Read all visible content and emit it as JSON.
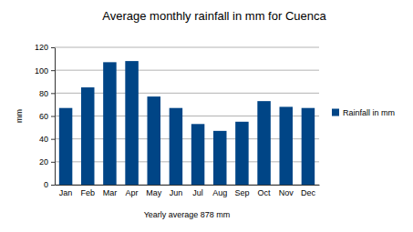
{
  "chart_data": {
    "type": "bar",
    "title": "Average monthly rainfall in mm for Cuenca",
    "y_label": "mm",
    "x_label": "Yearly average 878 mm",
    "categories": [
      "Jan",
      "Feb",
      "Mar",
      "Apr",
      "May",
      "Jun",
      "Jul",
      "Aug",
      "Sep",
      "Oct",
      "Nov",
      "Dec"
    ],
    "series": [
      {
        "name": "Rainfall in mm",
        "color": "#004586",
        "values": [
          67,
          85,
          107,
          108,
          77,
          67,
          53,
          47,
          55,
          73,
          68,
          67
        ]
      }
    ],
    "ylim": [
      0,
      120
    ],
    "yticks": [
      0,
      20,
      40,
      60,
      80,
      100,
      120
    ],
    "grid": true,
    "legend": "right"
  }
}
